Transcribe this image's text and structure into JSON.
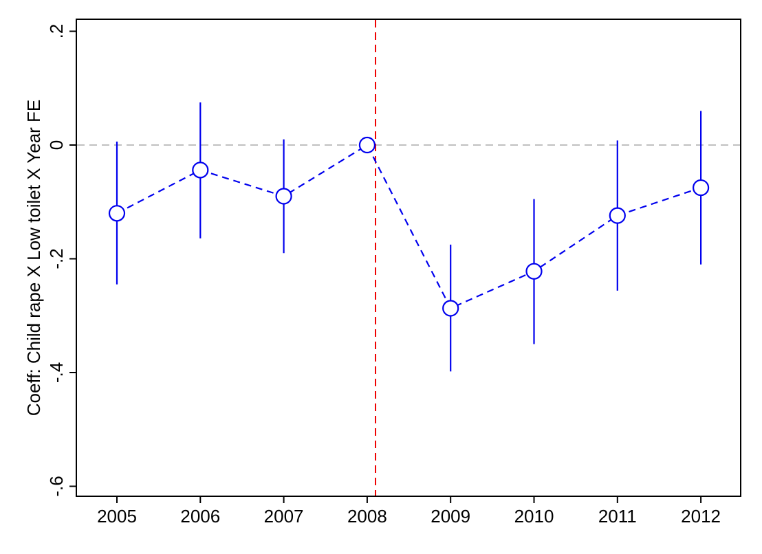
{
  "chart_data": {
    "type": "scatter",
    "title": "",
    "xlabel": "",
    "ylabel": "Coeff: Child rape X Low toilet X Year FE",
    "x": [
      2005,
      2006,
      2007,
      2008,
      2009,
      2010,
      2011,
      2012
    ],
    "x_tick_labels": [
      "2005",
      "2006",
      "2007",
      "2008",
      "2009",
      "2010",
      "2011",
      "2012"
    ],
    "y_ticks": [
      0.2,
      0,
      -0.2,
      -0.4,
      -0.6
    ],
    "y_tick_labels": [
      ".2",
      "0",
      "-.2",
      "-.4",
      "-.6"
    ],
    "xlim": [
      2004.5,
      2012.5
    ],
    "ylim": [
      -0.62,
      0.22
    ],
    "series": [
      {
        "values": [
          -0.12,
          -0.044,
          -0.09,
          0.0,
          -0.287,
          -0.222,
          -0.124,
          -0.075
        ],
        "ci_low": [
          -0.245,
          -0.164,
          -0.19,
          0.0,
          -0.398,
          -0.35,
          -0.256,
          -0.21
        ],
        "ci_high": [
          0.006,
          0.075,
          0.01,
          0.0,
          -0.175,
          -0.095,
          0.008,
          0.06
        ],
        "color": "#0000ee",
        "line_style": "dashed",
        "marker": "hollow-circle"
      }
    ],
    "reference_lines": [
      {
        "axis": "y",
        "value": 0,
        "color": "#c0c0c0",
        "style": "dashed"
      },
      {
        "axis": "x",
        "value": 2008.1,
        "color": "#ee0000",
        "style": "dashed"
      }
    ],
    "grid": false,
    "legend": "none"
  }
}
